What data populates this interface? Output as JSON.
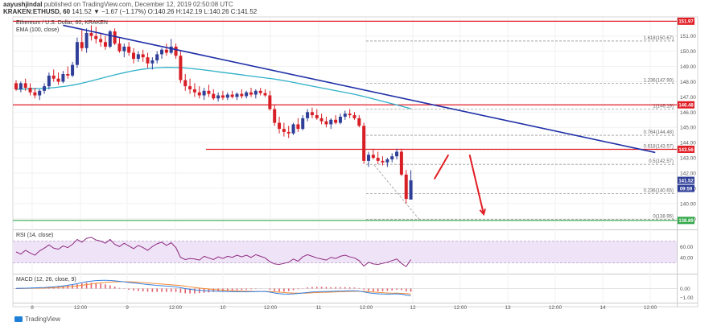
{
  "header": {
    "author": "aayushjindal",
    "published_text": "published on TradingView.com, December 12, 2019 02:50:08 UTC",
    "symbol": "KRAKEN:ETHUSD, 60",
    "ohlc": "141.52 ▼ −1.67 (−1.17%) O:140.26 H:142.19 L:140.26 C:141.52"
  },
  "footer": {
    "brand": "TradingView"
  },
  "colors": {
    "bull": "#2f3f98",
    "bear": "#d81f26",
    "ema": "#2fb0c9",
    "trendline": "#1f2fa8",
    "horizontal_red": "#e11d24",
    "support_green": "#33a84a",
    "rsi": "#8e2a7f",
    "rsi_band": "#efe3f7",
    "macd": "#2f7de1",
    "signal": "#f28a33",
    "histogram": "#e35d6a",
    "fib": "#9a9a9a"
  },
  "chart_data": [
    {
      "type": "candlestick",
      "title": "Ethereum / U.S. Dollar, 60, KRAKEN",
      "indicator_label": "EMA (100, close)",
      "x_tick_labels": [
        "8",
        "12:00",
        "9",
        "12:00",
        "10",
        "12:00",
        "11",
        "12:00",
        "12",
        "12:00",
        "13",
        "12:00",
        "14",
        "12:00"
      ],
      "ylim": [
        138.3,
        152.2
      ],
      "y_ticks": [
        139,
        140,
        141,
        142,
        143,
        144,
        145,
        146,
        147,
        148,
        149,
        150,
        151
      ],
      "y_tick_labels": [
        "139.00",
        "140.00",
        "141.00",
        "142.00",
        "143.00",
        "144.00",
        "145.00",
        "146.00",
        "147.00",
        "148.00",
        "149.00",
        "150.00",
        "151.00"
      ],
      "candles": [
        [
          147.9,
          148.1,
          147.4,
          147.5
        ],
        [
          147.5,
          148.0,
          147.3,
          147.9
        ],
        [
          147.9,
          148.2,
          147.4,
          147.6
        ],
        [
          147.6,
          147.9,
          147.1,
          147.3
        ],
        [
          147.3,
          147.6,
          146.9,
          147.1
        ],
        [
          147.1,
          147.5,
          146.8,
          147.4
        ],
        [
          147.4,
          147.9,
          147.2,
          147.7
        ],
        [
          147.7,
          148.6,
          147.5,
          148.4
        ],
        [
          148.4,
          148.8,
          148.0,
          148.2
        ],
        [
          148.2,
          148.6,
          147.8,
          148.0
        ],
        [
          148.0,
          148.7,
          147.9,
          148.5
        ],
        [
          148.5,
          149.0,
          148.2,
          148.4
        ],
        [
          148.4,
          149.3,
          148.3,
          149.1
        ],
        [
          149.1,
          150.9,
          148.9,
          150.6
        ],
        [
          150.6,
          151.4,
          150.0,
          150.2
        ],
        [
          150.2,
          151.5,
          149.9,
          151.2
        ],
        [
          151.2,
          151.7,
          150.7,
          151.0
        ],
        [
          151.0,
          151.6,
          150.5,
          150.8
        ],
        [
          150.8,
          151.2,
          150.3,
          150.6
        ],
        [
          150.6,
          151.0,
          150.1,
          150.3
        ],
        [
          150.3,
          151.4,
          150.2,
          151.3
        ],
        [
          151.3,
          151.5,
          150.4,
          150.5
        ],
        [
          150.5,
          150.9,
          149.9,
          150.0
        ],
        [
          150.0,
          150.5,
          149.6,
          150.3
        ],
        [
          150.3,
          150.6,
          149.7,
          149.9
        ],
        [
          149.9,
          150.2,
          149.2,
          149.5
        ],
        [
          149.5,
          150.0,
          149.3,
          149.8
        ],
        [
          149.8,
          150.1,
          149.3,
          149.6
        ],
        [
          149.6,
          149.9,
          148.9,
          149.2
        ],
        [
          149.2,
          149.6,
          148.8,
          149.4
        ],
        [
          149.4,
          150.0,
          149.2,
          149.8
        ],
        [
          149.8,
          150.2,
          149.5,
          150.1
        ],
        [
          150.1,
          150.5,
          149.7,
          149.9
        ],
        [
          149.9,
          150.8,
          149.8,
          150.3
        ],
        [
          150.3,
          150.5,
          149.5,
          149.7
        ],
        [
          149.7,
          150.0,
          147.9,
          148.1
        ],
        [
          148.1,
          148.5,
          147.4,
          147.7
        ],
        [
          147.7,
          148.2,
          147.2,
          147.5
        ],
        [
          147.5,
          147.9,
          147.0,
          147.3
        ],
        [
          147.3,
          147.7,
          146.9,
          147.1
        ],
        [
          147.1,
          147.6,
          146.8,
          147.4
        ],
        [
          147.4,
          147.8,
          147.0,
          147.2
        ],
        [
          147.2,
          147.5,
          146.8,
          146.9
        ],
        [
          146.9,
          147.3,
          146.7,
          147.1
        ],
        [
          147.1,
          147.4,
          146.8,
          146.95
        ],
        [
          146.95,
          147.3,
          146.8,
          147.15
        ],
        [
          147.15,
          147.4,
          146.9,
          147.0
        ],
        [
          147.0,
          147.3,
          146.8,
          147.2
        ],
        [
          147.2,
          147.5,
          146.9,
          147.05
        ],
        [
          147.05,
          147.4,
          146.9,
          147.3
        ],
        [
          147.3,
          147.6,
          147.0,
          147.15
        ],
        [
          147.15,
          147.5,
          146.9,
          147.4
        ],
        [
          147.4,
          147.6,
          147.1,
          147.25
        ],
        [
          147.25,
          147.5,
          147.0,
          147.1
        ],
        [
          147.1,
          147.4,
          146.1,
          146.2
        ],
        [
          146.2,
          146.5,
          145.1,
          145.3
        ],
        [
          145.3,
          145.7,
          144.6,
          144.9
        ],
        [
          144.9,
          145.3,
          144.4,
          144.7
        ],
        [
          144.7,
          145.1,
          144.3,
          144.6
        ],
        [
          144.6,
          145.3,
          144.5,
          145.2
        ],
        [
          145.2,
          145.6,
          144.7,
          144.9
        ],
        [
          144.9,
          145.8,
          144.8,
          145.6
        ],
        [
          145.6,
          146.2,
          145.4,
          146.0
        ],
        [
          146.0,
          146.3,
          145.6,
          145.8
        ],
        [
          145.8,
          146.2,
          145.5,
          145.6
        ],
        [
          145.6,
          145.9,
          145.2,
          145.4
        ],
        [
          145.4,
          145.7,
          145.0,
          145.2
        ],
        [
          145.2,
          145.6,
          144.9,
          145.5
        ],
        [
          145.5,
          145.8,
          145.2,
          145.3
        ],
        [
          145.3,
          145.9,
          145.2,
          145.7
        ],
        [
          145.7,
          146.1,
          145.5,
          145.9
        ],
        [
          145.9,
          146.2,
          145.6,
          145.8
        ],
        [
          145.8,
          146.0,
          145.5,
          145.6
        ],
        [
          145.6,
          145.8,
          145.0,
          145.1
        ],
        [
          145.1,
          145.3,
          142.6,
          142.8
        ],
        [
          142.8,
          143.4,
          142.4,
          143.2
        ],
        [
          143.2,
          143.6,
          142.9,
          143.0
        ],
        [
          143.0,
          143.4,
          142.6,
          142.8
        ],
        [
          142.8,
          143.1,
          142.5,
          142.7
        ],
        [
          142.7,
          143.0,
          142.4,
          142.9
        ],
        [
          142.9,
          143.3,
          142.7,
          143.1
        ],
        [
          143.1,
          143.6,
          142.9,
          143.4
        ],
        [
          143.4,
          143.6,
          141.8,
          141.9
        ],
        [
          141.9,
          142.2,
          140.0,
          140.3
        ],
        [
          140.26,
          142.19,
          140.26,
          141.52
        ]
      ],
      "ema_100": [
        147.5,
        147.51,
        147.52,
        147.53,
        147.54,
        147.55,
        147.56,
        147.58,
        147.61,
        147.64,
        147.68,
        147.72,
        147.77,
        147.83,
        147.9,
        147.97,
        148.05,
        148.13,
        148.21,
        148.29,
        148.37,
        148.45,
        148.52,
        148.59,
        148.66,
        148.72,
        148.77,
        148.82,
        148.86,
        148.89,
        148.91,
        148.93,
        148.94,
        148.94,
        148.93,
        148.92,
        148.9,
        148.87,
        148.84,
        148.81,
        148.77,
        148.73,
        148.69,
        148.65,
        148.61,
        148.57,
        148.53,
        148.49,
        148.45,
        148.41,
        148.37,
        148.33,
        148.29,
        148.25,
        148.21,
        148.17,
        148.12,
        148.07,
        148.01,
        147.95,
        147.89,
        147.83,
        147.77,
        147.71,
        147.65,
        147.59,
        147.53,
        147.47,
        147.41,
        147.35,
        147.29,
        147.23,
        147.17,
        147.1,
        147.03,
        146.95,
        146.87,
        146.79,
        146.71,
        146.63,
        146.55,
        146.47,
        146.39,
        146.31,
        146.23
      ],
      "trendline": {
        "from": [
          10,
          151.7
        ],
        "to": [
          136,
          143.35
        ]
      },
      "horizontal_lines": [
        {
          "value": 151.97,
          "label": "151.97",
          "color": "red"
        },
        {
          "value": 146.48,
          "label": "146.48",
          "color": "red"
        },
        {
          "value": 143.56,
          "label": "143.56",
          "color": "red"
        },
        {
          "value": 138.89,
          "label": "138.89",
          "color": "green"
        }
      ],
      "fibonacci": [
        {
          "value": 150.67,
          "label": "1.618(150.67)"
        },
        {
          "value": 147.9,
          "label": "1.236(147.90)"
        },
        {
          "value": 146.19,
          "label": "1(146.19)"
        },
        {
          "value": 144.48,
          "label": "0.764(144.48)"
        },
        {
          "value": 143.57,
          "label": "0.618(143.57)"
        },
        {
          "value": 142.57,
          "label": "0.5(142.57)"
        },
        {
          "value": 140.65,
          "label": "0.236(140.65)"
        },
        {
          "value": 138.95,
          "label": "0(138.95)"
        }
      ],
      "fib_dashed_leg": {
        "from": [
          85.8,
          138.95
        ],
        "to": [
          76,
          142.6
        ]
      },
      "price_badges": [
        {
          "value": 141.52,
          "label": "141.52",
          "color": "#2f3f98"
        },
        {
          "value": 140.75,
          "label": "09:59",
          "color": "#2f3f98"
        }
      ],
      "projection_arrows": [
        {
          "from": [
            89,
            141.6
          ],
          "to": [
            92,
            143.2
          ]
        },
        {
          "from": [
            96.5,
            143.2
          ],
          "to": [
            99.5,
            139.3
          ]
        }
      ]
    },
    {
      "type": "line",
      "title": "RSI (14, close)",
      "ylim": [
        10,
        90
      ],
      "y_tick_labels": [
        "60.00",
        "40.00"
      ],
      "band": [
        30,
        70
      ],
      "series": [
        {
          "values": [
            50,
            46,
            53,
            48,
            44,
            52,
            57,
            63,
            57,
            55,
            61,
            58,
            64,
            73,
            68,
            75,
            77,
            72,
            70,
            66,
            73,
            64,
            60,
            66,
            61,
            56,
            62,
            58,
            53,
            60,
            65,
            68,
            62,
            67,
            58,
            40,
            36,
            38,
            37,
            35,
            42,
            39,
            36,
            41,
            38,
            42,
            40,
            44,
            41,
            44,
            40,
            45,
            42,
            39,
            32,
            28,
            27,
            29,
            31,
            37,
            33,
            41,
            45,
            42,
            39,
            37,
            35,
            40,
            38,
            42,
            44,
            41,
            39,
            34,
            24,
            31,
            28,
            27,
            29,
            31,
            34,
            37,
            29,
            23,
            36
          ]
        }
      ]
    },
    {
      "type": "line",
      "title": "MACD (12, 26, close, 9)",
      "ylim": [
        -1.6,
        1.6
      ],
      "y_tick_labels": [
        "0.00",
        "−1.00"
      ],
      "series": [
        {
          "name": "MACD",
          "values": [
            0.02,
            0.03,
            0.04,
            0.06,
            0.08,
            0.1,
            0.12,
            0.16,
            0.2,
            0.25,
            0.3,
            0.38,
            0.46,
            0.56,
            0.68,
            0.78,
            0.85,
            0.9,
            0.93,
            0.94,
            0.92,
            0.88,
            0.82,
            0.76,
            0.7,
            0.64,
            0.58,
            0.52,
            0.46,
            0.41,
            0.36,
            0.32,
            0.28,
            0.25,
            0.2,
            0.1,
            0.0,
            -0.08,
            -0.15,
            -0.2,
            -0.24,
            -0.27,
            -0.29,
            -0.31,
            -0.33,
            -0.34,
            -0.35,
            -0.35,
            -0.36,
            -0.36,
            -0.35,
            -0.34,
            -0.33,
            -0.33,
            -0.4,
            -0.5,
            -0.58,
            -0.62,
            -0.63,
            -0.6,
            -0.56,
            -0.5,
            -0.44,
            -0.39,
            -0.36,
            -0.34,
            -0.33,
            -0.32,
            -0.3,
            -0.28,
            -0.26,
            -0.25,
            -0.25,
            -0.28,
            -0.38,
            -0.48,
            -0.55,
            -0.59,
            -0.62,
            -0.63,
            -0.62,
            -0.6,
            -0.64,
            -0.74,
            -0.8
          ]
        },
        {
          "name": "Signal",
          "values": [
            0.0,
            0.01,
            0.02,
            0.03,
            0.04,
            0.05,
            0.06,
            0.08,
            0.1,
            0.13,
            0.16,
            0.2,
            0.25,
            0.31,
            0.38,
            0.45,
            0.52,
            0.59,
            0.65,
            0.7,
            0.74,
            0.77,
            0.78,
            0.78,
            0.77,
            0.75,
            0.72,
            0.68,
            0.64,
            0.6,
            0.55,
            0.51,
            0.47,
            0.43,
            0.39,
            0.34,
            0.27,
            0.2,
            0.13,
            0.06,
            0.0,
            -0.05,
            -0.1,
            -0.14,
            -0.18,
            -0.21,
            -0.24,
            -0.26,
            -0.28,
            -0.3,
            -0.31,
            -0.32,
            -0.32,
            -0.33,
            -0.34,
            -0.37,
            -0.41,
            -0.45,
            -0.49,
            -0.51,
            -0.52,
            -0.52,
            -0.51,
            -0.48,
            -0.46,
            -0.44,
            -0.42,
            -0.4,
            -0.38,
            -0.36,
            -0.34,
            -0.32,
            -0.31,
            -0.31,
            -0.32,
            -0.35,
            -0.39,
            -0.43,
            -0.47,
            -0.5,
            -0.52,
            -0.53,
            -0.55,
            -0.58,
            -0.62
          ]
        }
      ]
    }
  ]
}
